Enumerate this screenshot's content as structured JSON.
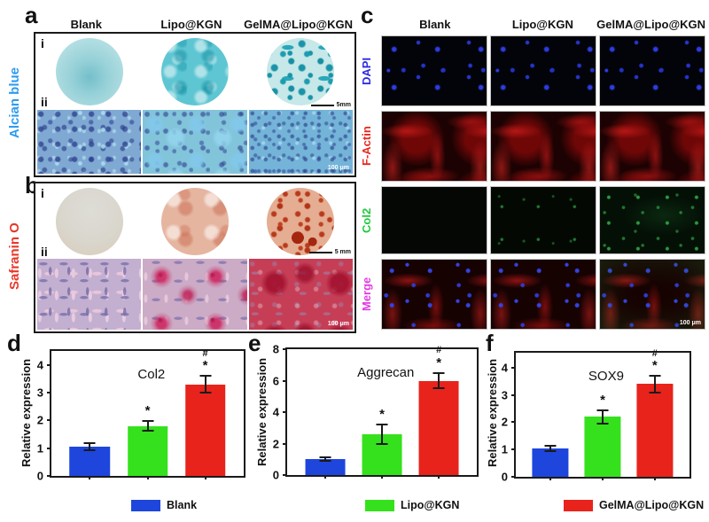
{
  "figure": {
    "panels": {
      "a": {
        "letter": "a",
        "stain_label": "Alcian blue",
        "stain_color": "#2e9bf0",
        "columns": [
          "Blank",
          "Lipo@KGN",
          "GelMA@Lipo@KGN"
        ],
        "row_i": "i",
        "row_ii": "ii",
        "scalebar_wells": "5mm",
        "scalebar_micro": "100 μm"
      },
      "b": {
        "letter": "b",
        "stain_label": "Safranin O",
        "stain_color": "#e8382a",
        "columns": [
          "Blank",
          "Lipo@KGN",
          "GelMA@Lipo@KGN"
        ],
        "row_i": "i",
        "row_ii": "ii",
        "scalebar_wells": "5 mm",
        "scalebar_micro": "100 μm"
      },
      "c": {
        "letter": "c",
        "columns": [
          "Blank",
          "Lipo@KGN",
          "GelMA@Lipo@KGN"
        ],
        "rows": [
          {
            "label": "DAPI",
            "color": "#2a2ae0"
          },
          {
            "label": "F-Actin",
            "color": "#e8281e"
          },
          {
            "label": "Col2",
            "color": "#1fc93c"
          },
          {
            "label": "Merge",
            "color": "#e23ae2"
          }
        ],
        "scalebar_micro": "100 μm"
      }
    },
    "legend": [
      {
        "label": "Blank",
        "color": "#1e46dc"
      },
      {
        "label": "Lipo@KGN",
        "color": "#35e11c"
      },
      {
        "label": "GelMA@Lipo@KGN",
        "color": "#e8231c"
      }
    ]
  },
  "chart_data": [
    {
      "type": "bar",
      "panel_letter": "d",
      "title": "Col2",
      "ylabel": "Relative expression",
      "categories": [
        "Blank",
        "Lipo@KGN",
        "GelMA@Lipo@KGN"
      ],
      "values": [
        1.05,
        1.8,
        3.3
      ],
      "errors": [
        0.13,
        0.18,
        0.3
      ],
      "significance": [
        [],
        [
          "*"
        ],
        [
          "#",
          "*"
        ]
      ],
      "yticks": [
        0,
        1,
        2,
        3,
        4
      ],
      "ylim": [
        0,
        4.5
      ],
      "bar_colors": [
        "#1e46dc",
        "#35e11c",
        "#e8231c"
      ]
    },
    {
      "type": "bar",
      "panel_letter": "e",
      "title": "Aggrecan",
      "ylabel": "Relative expression",
      "categories": [
        "Blank",
        "Lipo@KGN",
        "GelMA@Lipo@KGN"
      ],
      "values": [
        1.0,
        2.6,
        6.0
      ],
      "errors": [
        0.12,
        0.6,
        0.5
      ],
      "significance": [
        [],
        [
          "*"
        ],
        [
          "#",
          "*"
        ]
      ],
      "yticks": [
        0,
        2,
        4,
        6,
        8
      ],
      "ylim": [
        0,
        8
      ],
      "bar_colors": [
        "#1e46dc",
        "#35e11c",
        "#e8231c"
      ]
    },
    {
      "type": "bar",
      "panel_letter": "f",
      "title": "SOX9",
      "ylabel": "Relative expression",
      "categories": [
        "Blank",
        "Lipo@KGN",
        "GelMA@Lipo@KGN"
      ],
      "values": [
        1.05,
        2.2,
        3.4
      ],
      "errors": [
        0.1,
        0.25,
        0.3
      ],
      "significance": [
        [],
        [
          "*"
        ],
        [
          "#",
          "*"
        ]
      ],
      "yticks": [
        0,
        1,
        2,
        3,
        4
      ],
      "ylim": [
        0,
        4.55
      ],
      "bar_colors": [
        "#1e46dc",
        "#35e11c",
        "#e8231c"
      ]
    }
  ]
}
